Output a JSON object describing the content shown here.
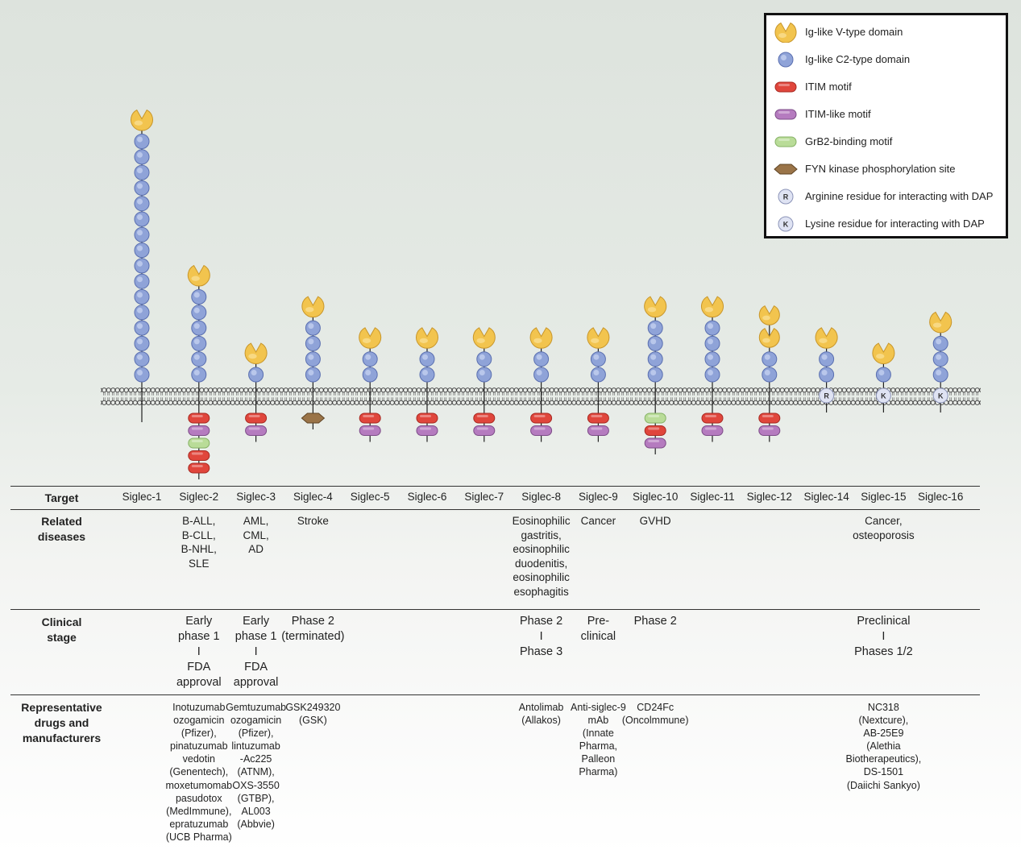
{
  "legend": [
    {
      "icon": "v-domain-icon",
      "label": "Ig-like V-type domain"
    },
    {
      "icon": "c2-domain-icon",
      "label": "Ig-like C2-type domain"
    },
    {
      "icon": "itim-icon",
      "label": "ITIM motif"
    },
    {
      "icon": "itim-like-icon",
      "label": "ITIM-like motif"
    },
    {
      "icon": "grb2-icon",
      "label": "GrB2-binding motif"
    },
    {
      "icon": "fyn-icon",
      "label": "FYN kinase phosphorylation site"
    },
    {
      "icon": "arginine-icon",
      "label": "Arginine residue for interacting with DAP"
    },
    {
      "icon": "lysine-icon",
      "label": "Lysine residue for interacting with DAP"
    }
  ],
  "residue_letters": {
    "arginine": "R",
    "lysine": "K"
  },
  "colors": {
    "v_domain": "#f2c44e",
    "c2_domain": "#8fa3d8",
    "itim": "#e0463c",
    "itim_like": "#b57bbf",
    "grb2": "#b9dc98",
    "fyn": "#9a7448",
    "residue": "#dfe3f3"
  },
  "siglecs": [
    {
      "name": "Siglec-1",
      "v": 1,
      "c2": 16,
      "residue": null,
      "intra": []
    },
    {
      "name": "Siglec-2",
      "v": 1,
      "c2": 6,
      "residue": null,
      "intra": [
        "itim",
        "itim-like",
        "grb2",
        "itim",
        "itim"
      ]
    },
    {
      "name": "Siglec-3",
      "v": 1,
      "c2": 1,
      "residue": null,
      "intra": [
        "itim",
        "itim-like"
      ]
    },
    {
      "name": "Siglec-4",
      "v": 1,
      "c2": 4,
      "residue": null,
      "intra": [
        "fyn"
      ]
    },
    {
      "name": "Siglec-5",
      "v": 1,
      "c2": 2,
      "residue": null,
      "intra": [
        "itim",
        "itim-like"
      ]
    },
    {
      "name": "Siglec-6",
      "v": 1,
      "c2": 2,
      "residue": null,
      "intra": [
        "itim",
        "itim-like"
      ]
    },
    {
      "name": "Siglec-7",
      "v": 1,
      "c2": 2,
      "residue": null,
      "intra": [
        "itim",
        "itim-like"
      ]
    },
    {
      "name": "Siglec-8",
      "v": 1,
      "c2": 2,
      "residue": null,
      "intra": [
        "itim",
        "itim-like"
      ]
    },
    {
      "name": "Siglec-9",
      "v": 1,
      "c2": 2,
      "residue": null,
      "intra": [
        "itim",
        "itim-like"
      ]
    },
    {
      "name": "Siglec-10",
      "v": 1,
      "c2": 4,
      "residue": null,
      "intra": [
        "grb2",
        "itim",
        "itim-like"
      ]
    },
    {
      "name": "Siglec-11",
      "v": 1,
      "c2": 4,
      "residue": null,
      "intra": [
        "itim",
        "itim-like"
      ]
    },
    {
      "name": "Siglec-12",
      "v": 2,
      "c2": 2,
      "residue": null,
      "intra": [
        "itim",
        "itim-like"
      ]
    },
    {
      "name": "Siglec-14",
      "v": 1,
      "c2": 2,
      "residue": "R",
      "intra": []
    },
    {
      "name": "Siglec-15",
      "v": 1,
      "c2": 1,
      "residue": "K",
      "intra": []
    },
    {
      "name": "Siglec-16",
      "v": 1,
      "c2": 3,
      "residue": "K",
      "intra": []
    }
  ],
  "table": {
    "row_labels": {
      "target": "Target",
      "diseases": "Related\ndiseases",
      "stage": "Clinical\nstage",
      "drugs": "Representative\ndrugs and\nmanufacturers"
    },
    "diseases": [
      {
        "col": 1,
        "text": "B-ALL,\nB-CLL,\nB-NHL,\nSLE"
      },
      {
        "col": 2,
        "text": "AML,\nCML,\nAD"
      },
      {
        "col": 3,
        "text": "Stroke"
      },
      {
        "col": 7,
        "text": "Eosinophilic\ngastritis,\neosinophilic\nduodenitis,\neosinophilic\nesophagitis"
      },
      {
        "col": 8,
        "text": "Cancer"
      },
      {
        "col": 9,
        "text": "GVHD"
      },
      {
        "col": 13,
        "text": "Cancer,\nosteoporosis"
      }
    ],
    "stages": [
      {
        "col": 1,
        "text": "Early\nphase 1\nI\nFDA\napproval"
      },
      {
        "col": 2,
        "text": "Early\nphase 1\nI\nFDA\napproval"
      },
      {
        "col": 3,
        "text": "Phase 2\n(terminated)"
      },
      {
        "col": 7,
        "text": "Phase 2\nI\nPhase 3"
      },
      {
        "col": 8,
        "text": "Pre-\nclinical"
      },
      {
        "col": 9,
        "text": "Phase 2"
      },
      {
        "col": 13,
        "text": "Preclinical\nI\nPhases 1/2"
      }
    ],
    "drugs": [
      {
        "col": 1,
        "text": "Inotuzumab\nozogamicin\n(Pfizer),\npinatuzumab\nvedotin\n(Genentech),\nmoxetumomab\npasudotox\n(MedImmune),\nepratuzumab\n(UCB Pharma)"
      },
      {
        "col": 2,
        "text": "Gemtuzumab\nozogamicin\n(Pfizer),\nlintuzumab\n-Ac225\n(ATNM),\nOXS-3550\n(GTBP),\nAL003\n(Abbvie)"
      },
      {
        "col": 3,
        "text": "GSK249320\n(GSK)"
      },
      {
        "col": 7,
        "text": "Antolimab\n(Allakos)"
      },
      {
        "col": 8,
        "text": "Anti-siglec-9\nmAb\n(Innate\nPharma,\nPalleon\nPharma)"
      },
      {
        "col": 9,
        "text": "CD24Fc\n(Oncolmmune)"
      },
      {
        "col": 13,
        "text": "NC318\n(Nextcure),\nAB-25E9\n(Alethia\nBiotherapeutics),\nDS-1501\n(Daiichi Sankyo)"
      }
    ]
  }
}
